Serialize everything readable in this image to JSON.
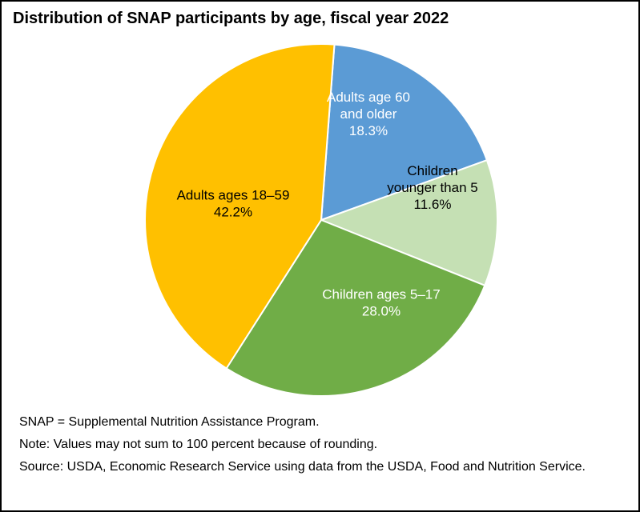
{
  "chart_data": {
    "type": "pie",
    "title": "Distribution of SNAP participants by age, fiscal year 2022",
    "start_angle_deg": 4.3,
    "slices": [
      {
        "key": "adults60",
        "label": [
          "Adults age 60",
          "and older"
        ],
        "value_text": "18.3%",
        "value": 18.3,
        "color": "#5b9bd5",
        "text_color": "#ffffff"
      },
      {
        "key": "under5",
        "label": [
          "Children",
          "younger than 5"
        ],
        "value_text": "11.6%",
        "value": 11.6,
        "color": "#c5e0b4",
        "text_color": "#000000"
      },
      {
        "key": "kids5_17",
        "label": [
          "Children ages 5–17"
        ],
        "value_text": "28.0%",
        "value": 28.0,
        "color": "#70ad47",
        "text_color": "#ffffff"
      },
      {
        "key": "adults18_59",
        "label": [
          "Adults ages 18–59"
        ],
        "value_text": "42.2%",
        "value": 42.2,
        "color": "#ffc000",
        "text_color": "#000000"
      }
    ]
  },
  "notes": {
    "abbrev": "SNAP = Supplemental Nutrition Assistance Program.",
    "note": "Note: Values may not sum to 100 percent because of rounding.",
    "source": "Source: USDA, Economic Research Service using data from the USDA, Food and Nutrition Service."
  }
}
